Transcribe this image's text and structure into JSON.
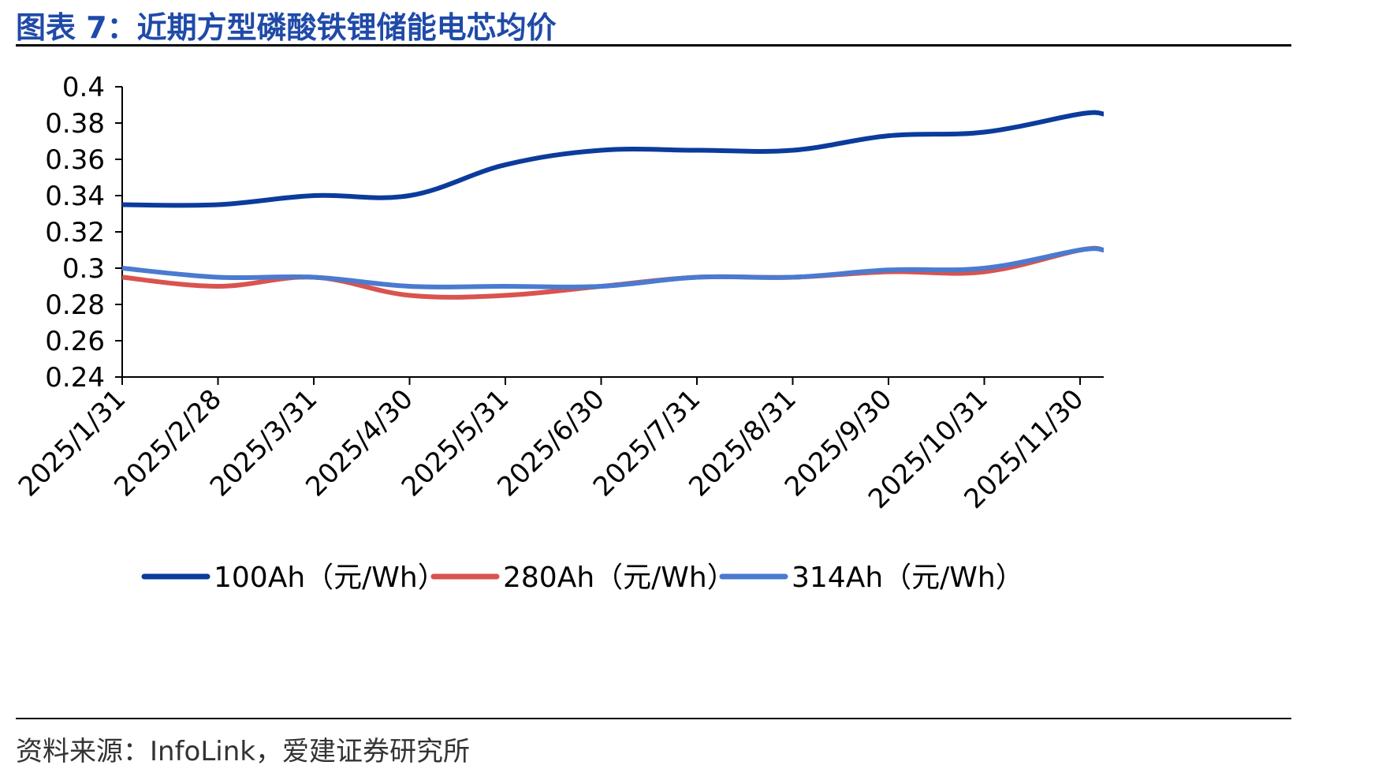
{
  "header": {
    "title": "图表 7：近期方型磷酸铁锂储能电芯均价"
  },
  "footer": {
    "source": "资料来源：InfoLink，爱建证券研究所"
  },
  "chart_data": {
    "type": "line",
    "title": "",
    "xlabel": "",
    "ylabel": "",
    "ylim": [
      0.24,
      0.4
    ],
    "yticks": [
      "0.24",
      "0.26",
      "0.28",
      "0.3",
      "0.32",
      "0.34",
      "0.36",
      "0.38",
      "0.4"
    ],
    "x": [
      "2025/1/31",
      "2025/2/28",
      "2025/3/31",
      "2025/4/30",
      "2025/5/31",
      "2025/6/30",
      "2025/7/31",
      "2025/8/31",
      "2025/9/30",
      "2025/10/31",
      "2025/11/30"
    ],
    "grid": false,
    "legend": "bottom",
    "series": [
      {
        "name": "100Ah（元/Wh）",
        "color": "#0b3b9c",
        "values": [
          0.335,
          0.335,
          0.34,
          0.34,
          0.357,
          0.365,
          0.365,
          0.365,
          0.373,
          0.375,
          0.385
        ],
        "end_value": 0.385
      },
      {
        "name": "280Ah（元/Wh）",
        "color": "#d9534f",
        "values": [
          0.295,
          0.29,
          0.295,
          0.285,
          0.285,
          0.29,
          0.295,
          0.295,
          0.298,
          0.298,
          0.31
        ],
        "end_value": 0.31
      },
      {
        "name": "314Ah（元/Wh）",
        "color": "#4a7bd0",
        "values": [
          0.3,
          0.295,
          0.295,
          0.29,
          0.29,
          0.29,
          0.295,
          0.295,
          0.299,
          0.3,
          0.31
        ],
        "end_value": 0.31
      }
    ]
  }
}
